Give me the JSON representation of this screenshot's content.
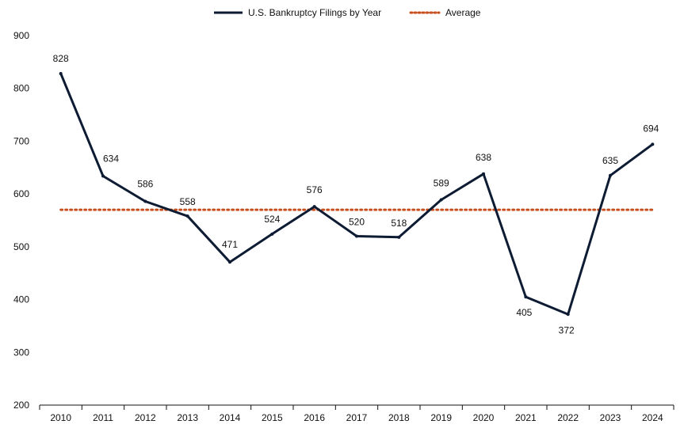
{
  "chart_data": {
    "type": "line",
    "title": "",
    "xlabel": "",
    "ylabel": "",
    "categories": [
      "2010",
      "2011",
      "2012",
      "2013",
      "2014",
      "2015",
      "2016",
      "2017",
      "2018",
      "2019",
      "2020",
      "2021",
      "2022",
      "2023",
      "2024"
    ],
    "series": [
      {
        "name": "U.S. Bankruptcy Filings by Year",
        "values": [
          828,
          634,
          586,
          558,
          471,
          524,
          576,
          520,
          518,
          589,
          638,
          405,
          372,
          635,
          694
        ],
        "color": "#0d1b33",
        "style": "solid"
      },
      {
        "name": "Average",
        "values": [
          570,
          570,
          570,
          570,
          570,
          570,
          570,
          570,
          570,
          570,
          570,
          570,
          570,
          570,
          570
        ],
        "color": "#c8501e",
        "style": "dotted"
      }
    ],
    "ylim": [
      200,
      900
    ],
    "yticks": [
      200,
      300,
      400,
      500,
      600,
      700,
      800,
      900
    ],
    "grid": false,
    "legend": "top-center"
  }
}
